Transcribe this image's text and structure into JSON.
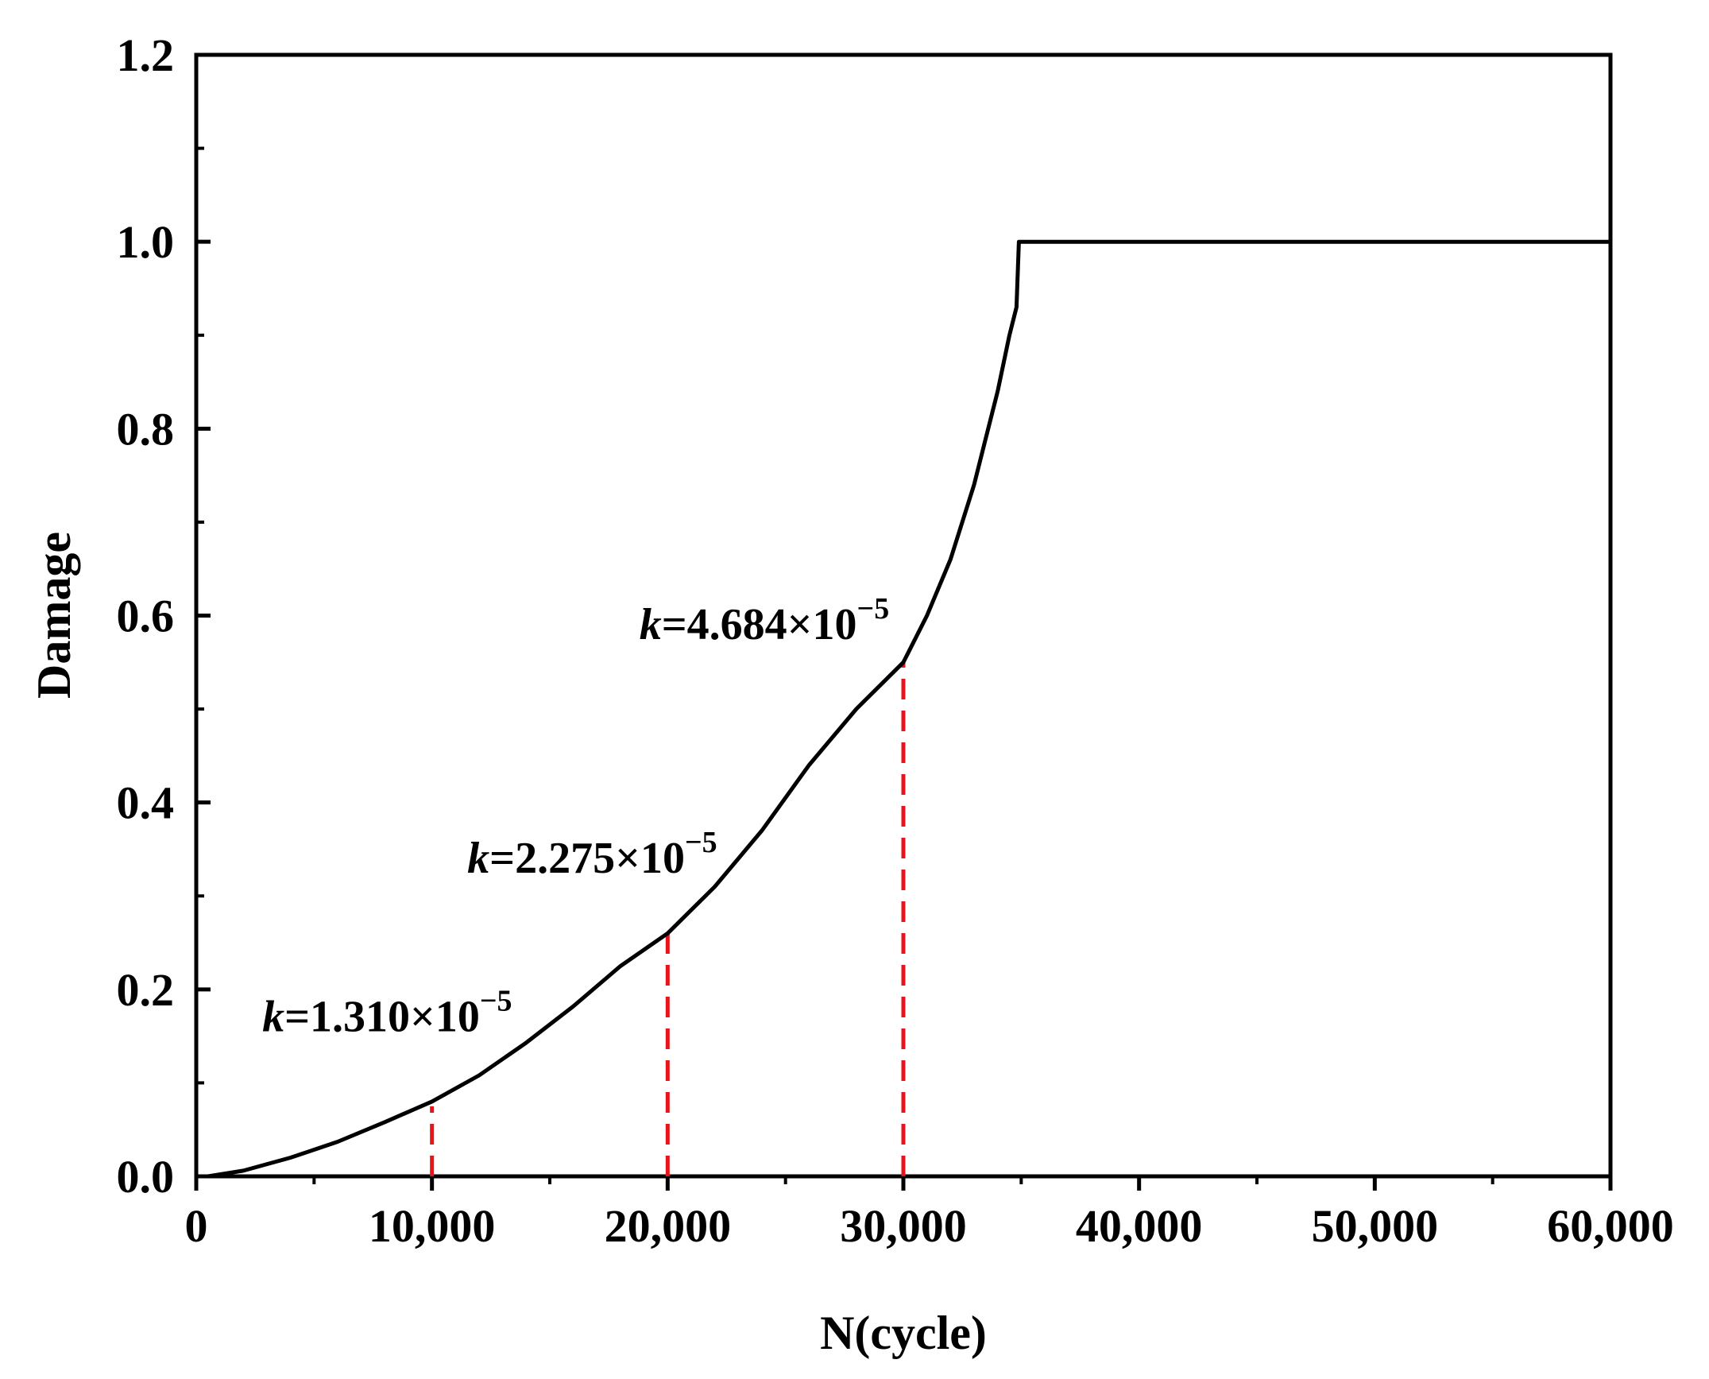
{
  "chart_data": {
    "type": "line",
    "title": "",
    "xlabel": "N(cycle)",
    "ylabel": "Damage",
    "xlim": [
      0,
      60000
    ],
    "ylim": [
      0,
      1.2
    ],
    "x_ticks": [
      0,
      10000,
      20000,
      30000,
      40000,
      50000,
      60000
    ],
    "x_tick_labels": [
      "0",
      "10,000",
      "20,000",
      "30,000",
      "40,000",
      "50,000",
      "60,000"
    ],
    "y_ticks": [
      0,
      0.2,
      0.4,
      0.6,
      0.8,
      1.0,
      1.2
    ],
    "y_tick_labels": [
      "0.0",
      "0.2",
      "0.4",
      "0.6",
      "0.8",
      "1.0",
      "1.2"
    ],
    "grid": false,
    "series": [
      {
        "color": "#000000",
        "x": [
          500,
          2000,
          4000,
          6000,
          8000,
          10000,
          12000,
          14000,
          16000,
          18000,
          20000,
          22000,
          24000,
          26000,
          28000,
          30000,
          31000,
          32000,
          33000,
          33500,
          34000,
          34500,
          34800,
          34900,
          60000
        ],
        "y": [
          0.0,
          0.006,
          0.02,
          0.037,
          0.058,
          0.08,
          0.108,
          0.143,
          0.182,
          0.225,
          0.26,
          0.31,
          0.37,
          0.44,
          0.5,
          0.55,
          0.6,
          0.66,
          0.74,
          0.79,
          0.84,
          0.9,
          0.93,
          1.0,
          1.0
        ]
      }
    ],
    "markers": [
      {
        "x": 10000,
        "y": 0.075,
        "color": "#e8141b",
        "style": "dashed"
      },
      {
        "x": 20000,
        "y": 0.26,
        "color": "#e8141b",
        "style": "dashed"
      },
      {
        "x": 30000,
        "y": 0.55,
        "color": "#e8141b",
        "style": "dashed"
      }
    ],
    "annotations": [
      {
        "var": "k",
        "text": "=1.310×10",
        "exp": "−5",
        "x": 2800,
        "y": 0.155
      },
      {
        "var": "k",
        "text": "=2.275×10",
        "exp": "−5",
        "x": 11500,
        "y": 0.325
      },
      {
        "var": "k",
        "text": "=4.684×10",
        "exp": "−5",
        "x": 18800,
        "y": 0.575
      }
    ]
  }
}
